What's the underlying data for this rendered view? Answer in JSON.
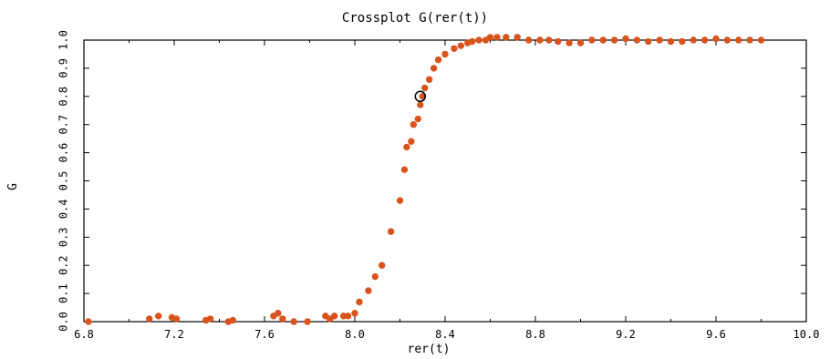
{
  "chart_data": {
    "type": "scatter",
    "title": "Crossplot G(rer(t))",
    "xlabel": "rer(t)",
    "ylabel": "G",
    "xlim": [
      6.8,
      10.0
    ],
    "ylim": [
      0.0,
      1.0
    ],
    "xticks": [
      "6.8",
      "7.2",
      "7.6",
      "8.0",
      "8.4",
      "8.8",
      "9.2",
      "9.6",
      "10.0"
    ],
    "yticks": [
      "0.0",
      "0.1",
      "0.2",
      "0.3",
      "0.4",
      "0.5",
      "0.6",
      "0.7",
      "0.8",
      "0.9",
      "1.0"
    ],
    "grid": false,
    "point_color": "#d9541c",
    "highlight_color": "#000000",
    "series": [
      {
        "x": [
          6.82,
          7.09,
          7.13,
          7.19,
          7.21,
          7.34,
          7.36,
          7.44,
          7.46,
          7.64,
          7.66,
          7.68,
          7.73,
          7.79,
          7.87,
          7.89,
          7.91,
          7.95,
          7.97,
          8.0,
          8.02,
          8.06,
          8.09,
          8.12,
          8.16,
          8.2,
          8.22,
          8.23,
          8.25,
          8.26,
          8.28,
          8.29,
          8.3,
          8.31,
          8.33,
          8.35,
          8.37,
          8.4,
          8.44,
          8.47,
          8.5,
          8.52,
          8.55,
          8.58,
          8.6,
          8.63,
          8.67,
          8.72,
          8.77,
          8.82,
          8.86,
          8.9,
          8.95,
          9.0,
          9.05,
          9.1,
          9.15,
          9.2,
          9.25,
          9.3,
          9.35,
          9.4,
          9.45,
          9.5,
          9.55,
          9.6,
          9.65,
          9.7,
          9.75,
          9.8
        ],
        "y": [
          0.0,
          0.01,
          0.02,
          0.015,
          0.01,
          0.005,
          0.01,
          0.0,
          0.005,
          0.02,
          0.03,
          0.01,
          0.0,
          0.0,
          0.02,
          0.01,
          0.02,
          0.02,
          0.02,
          0.03,
          0.07,
          0.11,
          0.16,
          0.2,
          0.32,
          0.43,
          0.54,
          0.62,
          0.64,
          0.7,
          0.72,
          0.77,
          0.8,
          0.83,
          0.86,
          0.9,
          0.93,
          0.95,
          0.97,
          0.98,
          0.99,
          0.995,
          1.0,
          1.0,
          1.01,
          1.01,
          1.01,
          1.01,
          1.0,
          1.0,
          1.0,
          0.995,
          0.99,
          0.99,
          1.0,
          1.0,
          1.0,
          1.005,
          1.0,
          0.995,
          1.0,
          0.995,
          0.995,
          1.0,
          1.0,
          1.005,
          1.0,
          1.0,
          1.0,
          1.0
        ]
      }
    ],
    "highlight": {
      "x": 8.29,
      "y": 0.8
    }
  }
}
